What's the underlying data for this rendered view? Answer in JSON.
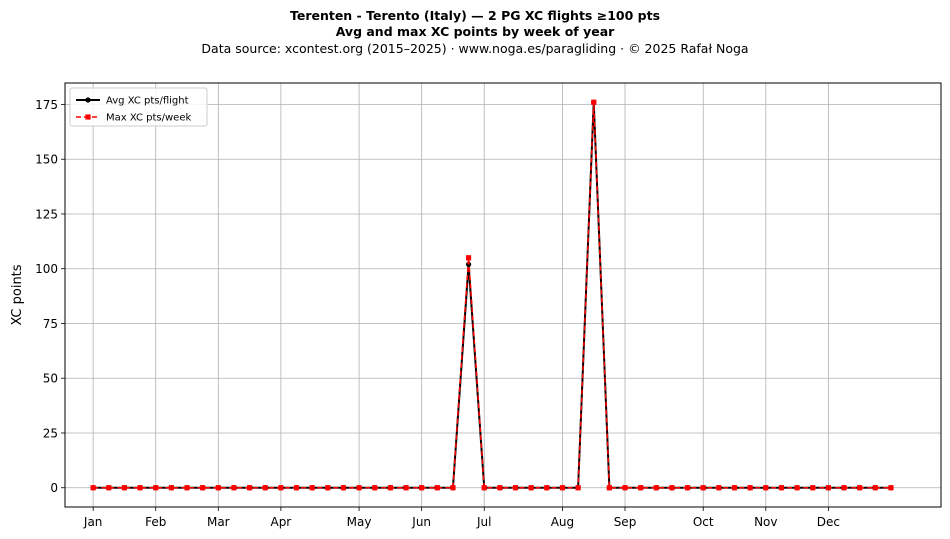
{
  "header": {
    "title": "Terenten - Terento (Italy)  —  2 PG XC flights ≥100 pts",
    "subtitle": "Avg and max XC points by week of year",
    "source": "Data source: xcontest.org (2015–2025)  ·  www.noga.es/paragliding  ·  © 2025 Rafał Noga"
  },
  "chart_data": {
    "type": "line",
    "title": "Terenten - Terento (Italy)  —  2 PG XC flights ≥100 pts",
    "subtitle": "Avg and max XC points by week of year",
    "xlabel": "",
    "ylabel": "XC points",
    "x_unit": "week of year",
    "xlim": [
      -1.8,
      54.2
    ],
    "ylim": [
      -8.8,
      184.8
    ],
    "yticks": [
      0,
      25,
      50,
      75,
      100,
      125,
      150,
      175
    ],
    "month_ticks": [
      {
        "label": "Jan",
        "week": 0
      },
      {
        "label": "Feb",
        "week": 4
      },
      {
        "label": "Mar",
        "week": 8
      },
      {
        "label": "Apr",
        "week": 12
      },
      {
        "label": "May",
        "week": 17
      },
      {
        "label": "Jun",
        "week": 21
      },
      {
        "label": "Jul",
        "week": 25
      },
      {
        "label": "Aug",
        "week": 30
      },
      {
        "label": "Sep",
        "week": 34
      },
      {
        "label": "Oct",
        "week": 39
      },
      {
        "label": "Nov",
        "week": 43
      },
      {
        "label": "Dec",
        "week": 47
      }
    ],
    "grid": true,
    "legend_position": "top-left",
    "x": [
      0,
      1,
      2,
      3,
      4,
      5,
      6,
      7,
      8,
      9,
      10,
      11,
      12,
      13,
      14,
      15,
      16,
      17,
      18,
      19,
      20,
      21,
      22,
      23,
      24,
      25,
      26,
      27,
      28,
      29,
      30,
      31,
      32,
      33,
      34,
      35,
      36,
      37,
      38,
      39,
      40,
      41,
      42,
      43,
      44,
      45,
      46,
      47,
      48,
      49,
      50,
      51
    ],
    "series": [
      {
        "name": "Avg XC pts/flight",
        "color": "#000000",
        "style": "solid",
        "marker": "circle",
        "values": [
          0,
          0,
          0,
          0,
          0,
          0,
          0,
          0,
          0,
          0,
          0,
          0,
          0,
          0,
          0,
          0,
          0,
          0,
          0,
          0,
          0,
          0,
          0,
          0,
          102,
          0,
          0,
          0,
          0,
          0,
          0,
          0,
          176,
          0,
          0,
          0,
          0,
          0,
          0,
          0,
          0,
          0,
          0,
          0,
          0,
          0,
          0,
          0,
          0,
          0,
          0,
          0
        ]
      },
      {
        "name": "Max XC pts/week",
        "color": "#ff0000",
        "style": "dashed",
        "marker": "square",
        "values": [
          0,
          0,
          0,
          0,
          0,
          0,
          0,
          0,
          0,
          0,
          0,
          0,
          0,
          0,
          0,
          0,
          0,
          0,
          0,
          0,
          0,
          0,
          0,
          0,
          105,
          0,
          0,
          0,
          0,
          0,
          0,
          0,
          176,
          0,
          0,
          0,
          0,
          0,
          0,
          0,
          0,
          0,
          0,
          0,
          0,
          0,
          0,
          0,
          0,
          0,
          0,
          0
        ]
      }
    ]
  }
}
